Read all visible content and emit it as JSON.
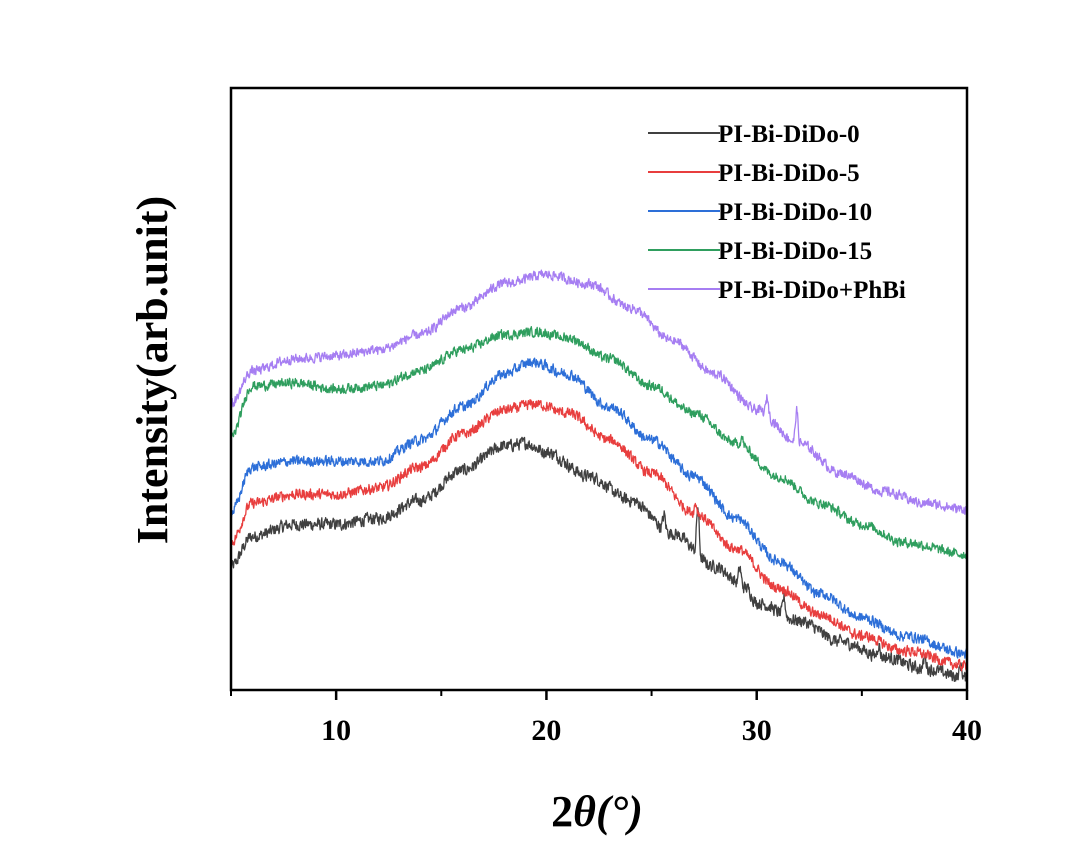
{
  "chart_data": {
    "type": "line",
    "title": "",
    "xlabel_prefix": "2",
    "xlabel_symbol": "θ",
    "xlabel_suffix": "(°)",
    "ylabel": "Intensity(arb.unit)",
    "xlim": [
      5,
      40
    ],
    "ylim": [
      0,
      100
    ],
    "x_ticks": [
      10,
      20,
      30,
      40
    ],
    "x_minor_ticks": [
      5,
      15,
      25,
      35
    ],
    "y_ticks_shown": false,
    "legend_position": "top-right",
    "series": [
      {
        "name": "PI-Bi-DiDo-0",
        "color": "#404040",
        "base": [
          [
            5,
            20.5
          ],
          [
            6,
            25.5
          ],
          [
            8,
            27.5
          ],
          [
            10,
            27.5
          ],
          [
            12,
            28.5
          ],
          [
            14,
            31.5
          ],
          [
            16,
            36.5
          ],
          [
            18,
            40.5
          ],
          [
            19,
            41.0
          ],
          [
            20,
            39.5
          ],
          [
            22,
            35.5
          ],
          [
            24,
            31.5
          ],
          [
            26,
            26.0
          ],
          [
            28,
            20.5
          ],
          [
            29.5,
            17.0
          ],
          [
            30,
            14.5
          ],
          [
            32,
            11.5
          ],
          [
            34,
            8.0
          ],
          [
            36,
            5.5
          ],
          [
            38,
            3.5
          ],
          [
            40,
            2.0
          ]
        ],
        "peaks": [
          [
            25.6,
            2.5
          ],
          [
            27.2,
            8.0
          ],
          [
            29.2,
            3.0
          ],
          [
            31.3,
            3.0
          ],
          [
            35.8,
            2.0
          ],
          [
            38.0,
            2.0
          ],
          [
            39.7,
            2.0
          ]
        ],
        "noise": 1.4
      },
      {
        "name": "PI-Bi-DiDo-5",
        "color": "#e83e3e",
        "base": [
          [
            5,
            24.5
          ],
          [
            6,
            31.0
          ],
          [
            8,
            32.5
          ],
          [
            10,
            32.5
          ],
          [
            12,
            33.5
          ],
          [
            14,
            37.0
          ],
          [
            16,
            42.5
          ],
          [
            18,
            46.5
          ],
          [
            19.5,
            47.5
          ],
          [
            21,
            46.0
          ],
          [
            23,
            41.5
          ],
          [
            25,
            36.0
          ],
          [
            27,
            29.5
          ],
          [
            29,
            23.5
          ],
          [
            31,
            17.0
          ],
          [
            33,
            12.5
          ],
          [
            35,
            9.0
          ],
          [
            37,
            6.5
          ],
          [
            40,
            4.0
          ]
        ],
        "peaks": [
          [
            27.1,
            1.5
          ]
        ],
        "noise": 1.2
      },
      {
        "name": "PI-Bi-DiDo-10",
        "color": "#2d6fd8",
        "base": [
          [
            5,
            29.5
          ],
          [
            6,
            37.0
          ],
          [
            8,
            38.0
          ],
          [
            10,
            38.0
          ],
          [
            12,
            38.0
          ],
          [
            14,
            41.5
          ],
          [
            16,
            47.0
          ],
          [
            18,
            52.5
          ],
          [
            19.3,
            54.5
          ],
          [
            21,
            52.5
          ],
          [
            23,
            47.0
          ],
          [
            25,
            41.5
          ],
          [
            27,
            35.5
          ],
          [
            29,
            28.5
          ],
          [
            31,
            21.5
          ],
          [
            33,
            16.0
          ],
          [
            35,
            12.0
          ],
          [
            37,
            9.0
          ],
          [
            40,
            6.0
          ]
        ],
        "peaks": [],
        "noise": 1.2
      },
      {
        "name": "PI-Bi-DiDo-15",
        "color": "#2f9e5e",
        "base": [
          [
            5,
            42.0
          ],
          [
            6,
            50.5
          ],
          [
            8,
            51.0
          ],
          [
            10,
            50.0
          ],
          [
            12,
            50.5
          ],
          [
            14,
            53.0
          ],
          [
            16,
            56.5
          ],
          [
            18,
            59.0
          ],
          [
            19.5,
            59.5
          ],
          [
            21,
            58.5
          ],
          [
            23,
            55.0
          ],
          [
            25,
            50.5
          ],
          [
            27,
            46.0
          ],
          [
            29,
            41.0
          ],
          [
            31,
            35.5
          ],
          [
            33,
            31.0
          ],
          [
            35,
            27.5
          ],
          [
            37,
            24.5
          ],
          [
            40,
            22.5
          ]
        ],
        "peaks": [
          [
            29.3,
            1.2
          ]
        ],
        "noise": 1.1
      },
      {
        "name": "PI-Bi-DiDo+PhBi",
        "color": "#a67ef2",
        "base": [
          [
            5,
            47.5
          ],
          [
            6,
            53.0
          ],
          [
            8,
            55.0
          ],
          [
            10,
            55.5
          ],
          [
            12,
            56.5
          ],
          [
            14,
            59.0
          ],
          [
            16,
            63.5
          ],
          [
            18,
            67.5
          ],
          [
            20,
            69.0
          ],
          [
            22,
            67.5
          ],
          [
            24,
            63.5
          ],
          [
            26,
            58.0
          ],
          [
            28,
            52.5
          ],
          [
            30,
            46.5
          ],
          [
            32,
            41.0
          ],
          [
            34,
            36.0
          ],
          [
            36,
            33.0
          ],
          [
            38,
            31.0
          ],
          [
            40,
            30.0
          ]
        ],
        "peaks": [
          [
            30.5,
            3.0
          ],
          [
            31.9,
            5.5
          ]
        ],
        "noise": 1.1
      }
    ]
  }
}
